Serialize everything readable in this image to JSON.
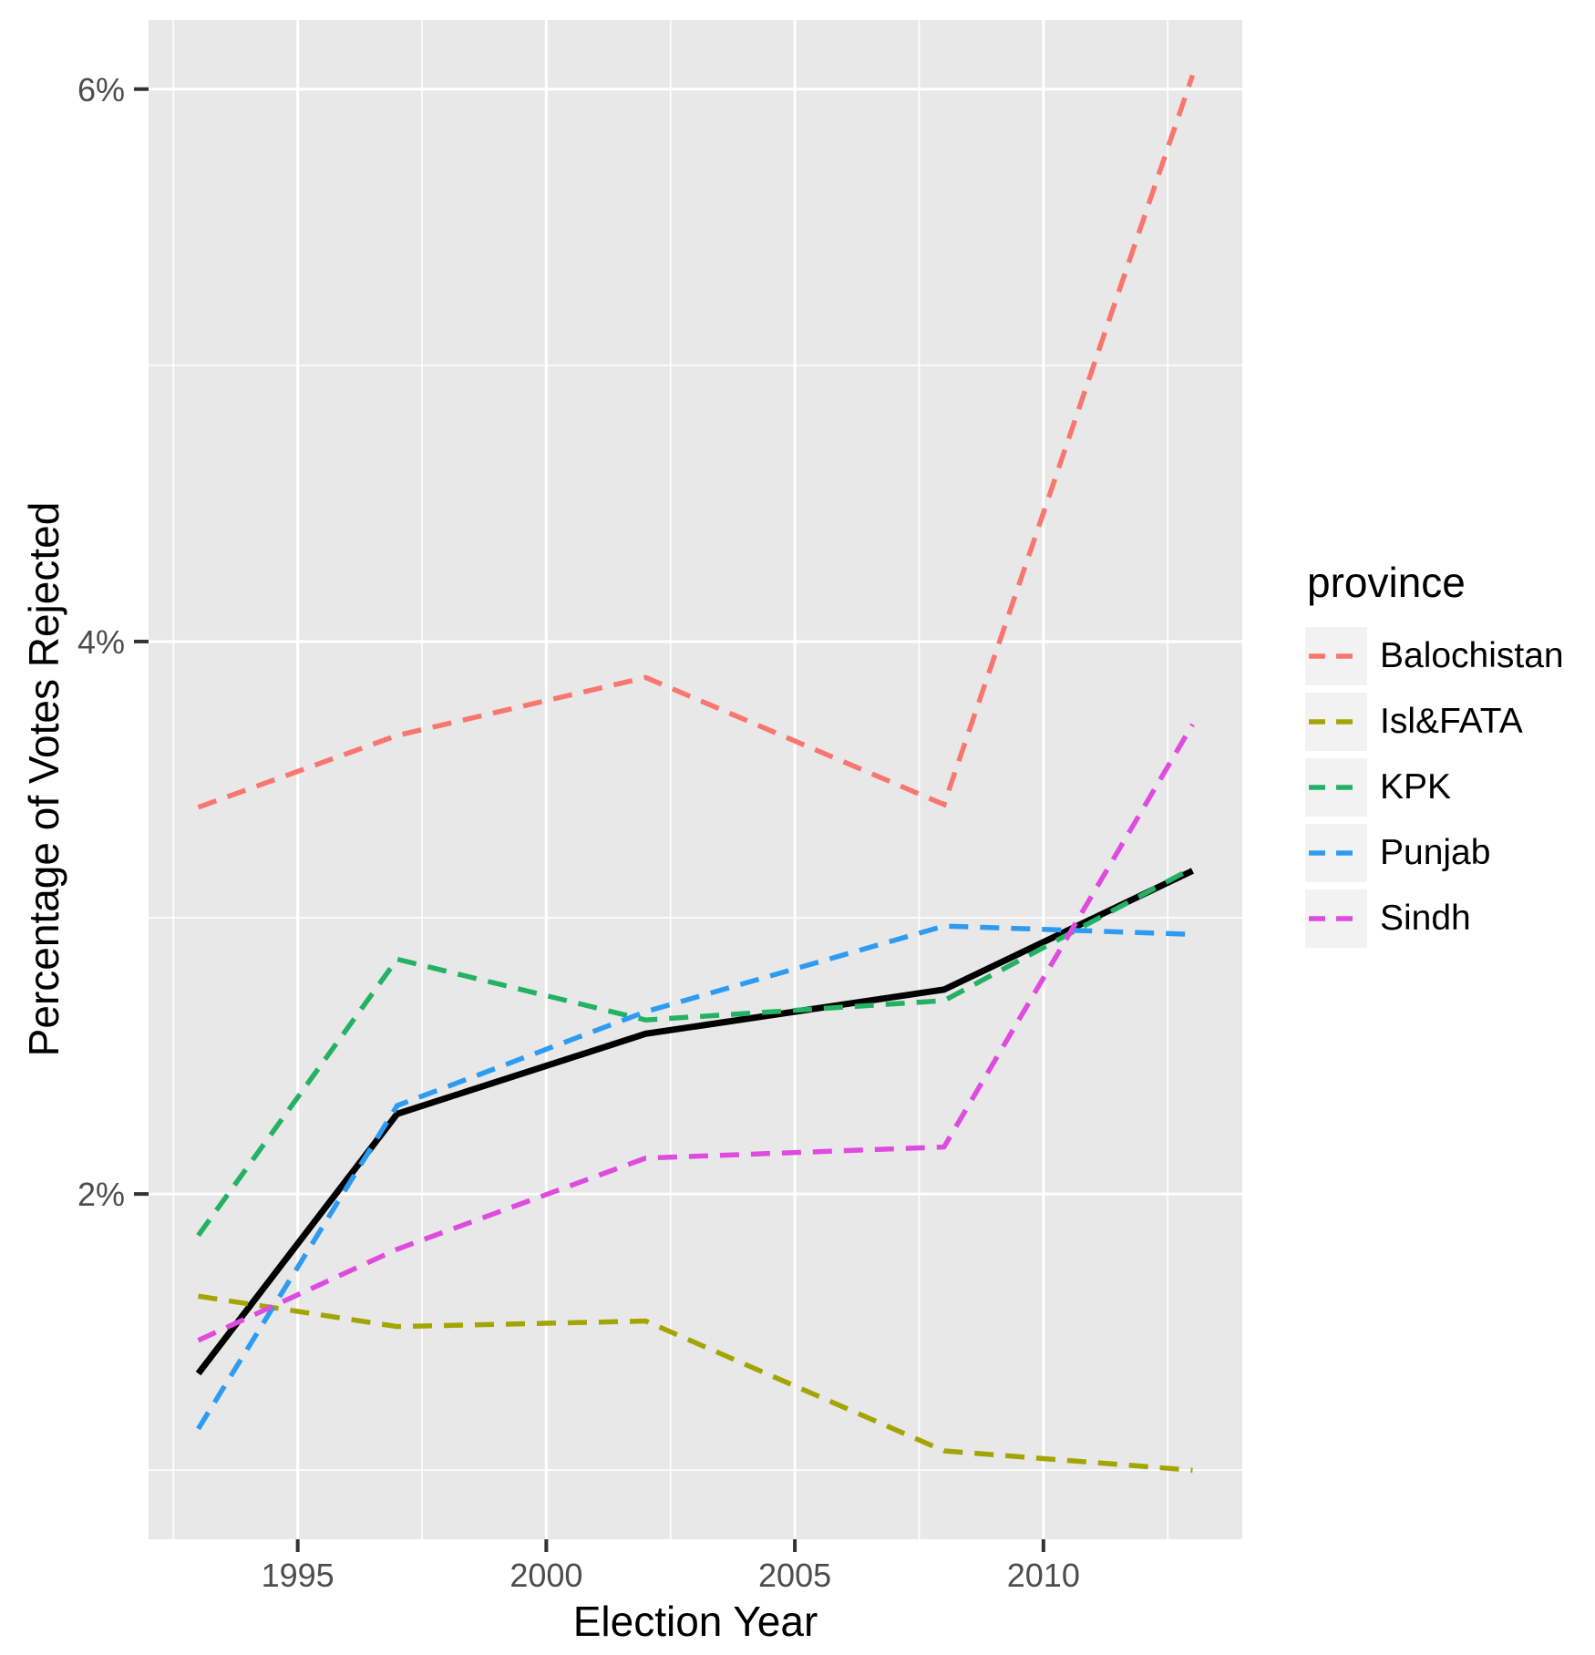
{
  "figure": {
    "background": "#ffffff",
    "panel_background": "#E8E8E8",
    "grid_color": "#ffffff",
    "tick_mark_color": "#333333",
    "tick_label_color": "#4D4D4D",
    "legend_key_background": "#F2F2F2"
  },
  "chart_data": {
    "type": "line",
    "title": "",
    "xlabel": "Election Year",
    "ylabel": "Percentage of Votes Rejected",
    "x": [
      1993,
      1997,
      2002,
      2008,
      2013
    ],
    "series": [
      {
        "name": "overall",
        "color": "#000000",
        "dashed": false,
        "show_in_legend": false,
        "values": [
          1.35,
          2.29,
          2.58,
          2.74,
          3.17
        ]
      },
      {
        "name": "Balochistan",
        "color": "#F8766D",
        "dashed": true,
        "values": [
          3.4,
          3.66,
          3.87,
          3.41,
          6.05
        ]
      },
      {
        "name": "Isl&FATA",
        "color": "#A3A500",
        "dashed": true,
        "values": [
          1.63,
          1.52,
          1.54,
          1.07,
          1.0
        ]
      },
      {
        "name": "KPK",
        "color": "#23B262",
        "dashed": true,
        "values": [
          1.85,
          2.85,
          2.63,
          2.7,
          3.18
        ]
      },
      {
        "name": "Punjab",
        "color": "#2D9BF2",
        "dashed": true,
        "values": [
          1.15,
          2.32,
          2.66,
          2.97,
          2.94
        ]
      },
      {
        "name": "Sindh",
        "color": "#DF4ADF",
        "dashed": true,
        "values": [
          1.47,
          1.8,
          2.13,
          2.17,
          3.7
        ]
      }
    ],
    "xlim": [
      1992,
      2014
    ],
    "ylim": [
      0.75,
      6.25
    ],
    "x_ticks": [
      {
        "value": 1995,
        "label": "1995"
      },
      {
        "value": 2000,
        "label": "2000"
      },
      {
        "value": 2005,
        "label": "2005"
      },
      {
        "value": 2010,
        "label": "2010"
      }
    ],
    "x_minor": [
      1992.5,
      1997.5,
      2002.5,
      2007.5,
      2012.5
    ],
    "y_ticks": [
      {
        "value": 2,
        "label": "2%"
      },
      {
        "value": 4,
        "label": "4%"
      },
      {
        "value": 6,
        "label": "6%"
      }
    ],
    "y_minor": [
      1,
      3,
      5
    ],
    "legend": {
      "title": "province",
      "position": "right"
    },
    "grid": true
  }
}
